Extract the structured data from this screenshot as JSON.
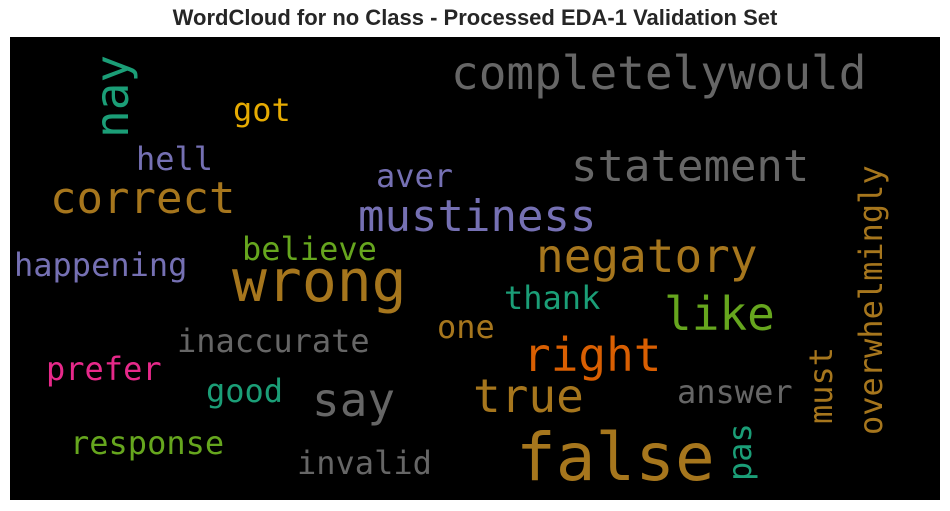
{
  "title": "WordCloud for no Class - Processed EDA-1 Validation Set",
  "background_color": "#000000",
  "words": [
    {
      "text": "completelywould",
      "color": "#666666"
    },
    {
      "text": "nay",
      "color": "#1b9e77"
    },
    {
      "text": "got",
      "color": "#e6ab02"
    },
    {
      "text": "hell",
      "color": "#7570b3"
    },
    {
      "text": "statement",
      "color": "#666666"
    },
    {
      "text": "aver",
      "color": "#7570b3"
    },
    {
      "text": "correct",
      "color": "#a6761d"
    },
    {
      "text": "mustiness",
      "color": "#7570b3"
    },
    {
      "text": "overwhelmingly",
      "color": "#a6761d"
    },
    {
      "text": "believe",
      "color": "#66a61e"
    },
    {
      "text": "happening",
      "color": "#7570b3"
    },
    {
      "text": "wrong",
      "color": "#a6761d"
    },
    {
      "text": "negatory",
      "color": "#a6761d"
    },
    {
      "text": "thank",
      "color": "#1b9e77"
    },
    {
      "text": "like",
      "color": "#66a61e"
    },
    {
      "text": "one",
      "color": "#a6761d"
    },
    {
      "text": "inaccurate",
      "color": "#666666"
    },
    {
      "text": "right",
      "color": "#d95f02"
    },
    {
      "text": "must",
      "color": "#a6761d"
    },
    {
      "text": "prefer",
      "color": "#e7298a"
    },
    {
      "text": "good",
      "color": "#1b9e77"
    },
    {
      "text": "say",
      "color": "#666666"
    },
    {
      "text": "true",
      "color": "#a6761d"
    },
    {
      "text": "answer",
      "color": "#666666"
    },
    {
      "text": "response",
      "color": "#66a61e"
    },
    {
      "text": "pas",
      "color": "#1b9e77"
    },
    {
      "text": "invalid",
      "color": "#666666"
    },
    {
      "text": "false",
      "color": "#a6761d"
    }
  ]
}
